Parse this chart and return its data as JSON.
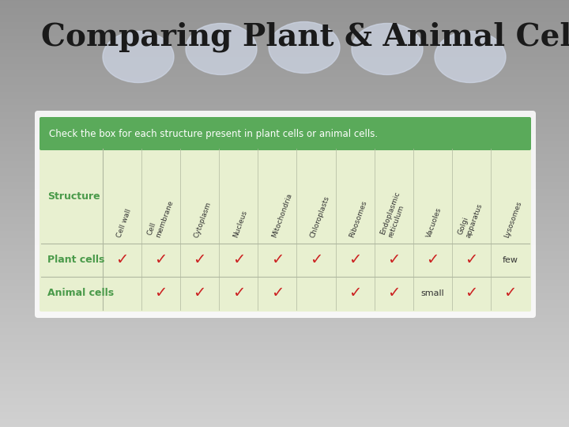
{
  "title": "Comparing Plant & Animal Cells",
  "title_fontsize": 28,
  "title_color": "#1a1a1a",
  "header_text": "Check the box for each structure present in plant cells or animal cells.",
  "header_bg": "#5aaa5a",
  "header_text_color": "#ffffff",
  "table_bg": "#e8f0d0",
  "structure_label_color": "#4a9a4a",
  "columns": [
    "Cell wall",
    "Cell\nmembrane",
    "Cytoplasm",
    "Nucleus",
    "Mitochondria",
    "Chloroplasts",
    "Ribosomes",
    "Endoplasmic\nreticulum",
    "Vacuoles",
    "Golgi\napparatus",
    "Lysosomes"
  ],
  "plant_checks": [
    1,
    1,
    1,
    1,
    1,
    1,
    1,
    1,
    1,
    1,
    0
  ],
  "plant_special": [
    0,
    0,
    0,
    0,
    0,
    0,
    0,
    0,
    0,
    0,
    1
  ],
  "plant_special_text": "few",
  "animal_checks": [
    0,
    1,
    1,
    1,
    1,
    0,
    1,
    1,
    0,
    1,
    1
  ],
  "animal_special": [
    0,
    0,
    0,
    0,
    0,
    0,
    0,
    0,
    1,
    0,
    0
  ],
  "animal_special_text": "small",
  "check_color": "#cc2222",
  "ellipse_color": "#d0d8e8",
  "ellipse_alpha": 0.7
}
